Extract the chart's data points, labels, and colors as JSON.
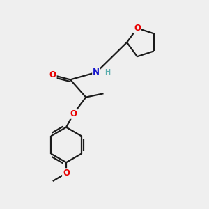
{
  "bg_color": "#efefef",
  "bond_color": "#1a1a1a",
  "line_width": 1.6,
  "atom_colors": {
    "O": "#e80000",
    "N": "#1414cc",
    "H": "#5aadad",
    "C": "#1a1a1a"
  },
  "font_size_atom": 8.5,
  "font_size_h": 7.0,
  "font_size_me": 7.5,
  "xlim": [
    0,
    10
  ],
  "ylim": [
    0,
    10
  ],
  "figsize": [
    3.0,
    3.0
  ],
  "dpi": 100
}
